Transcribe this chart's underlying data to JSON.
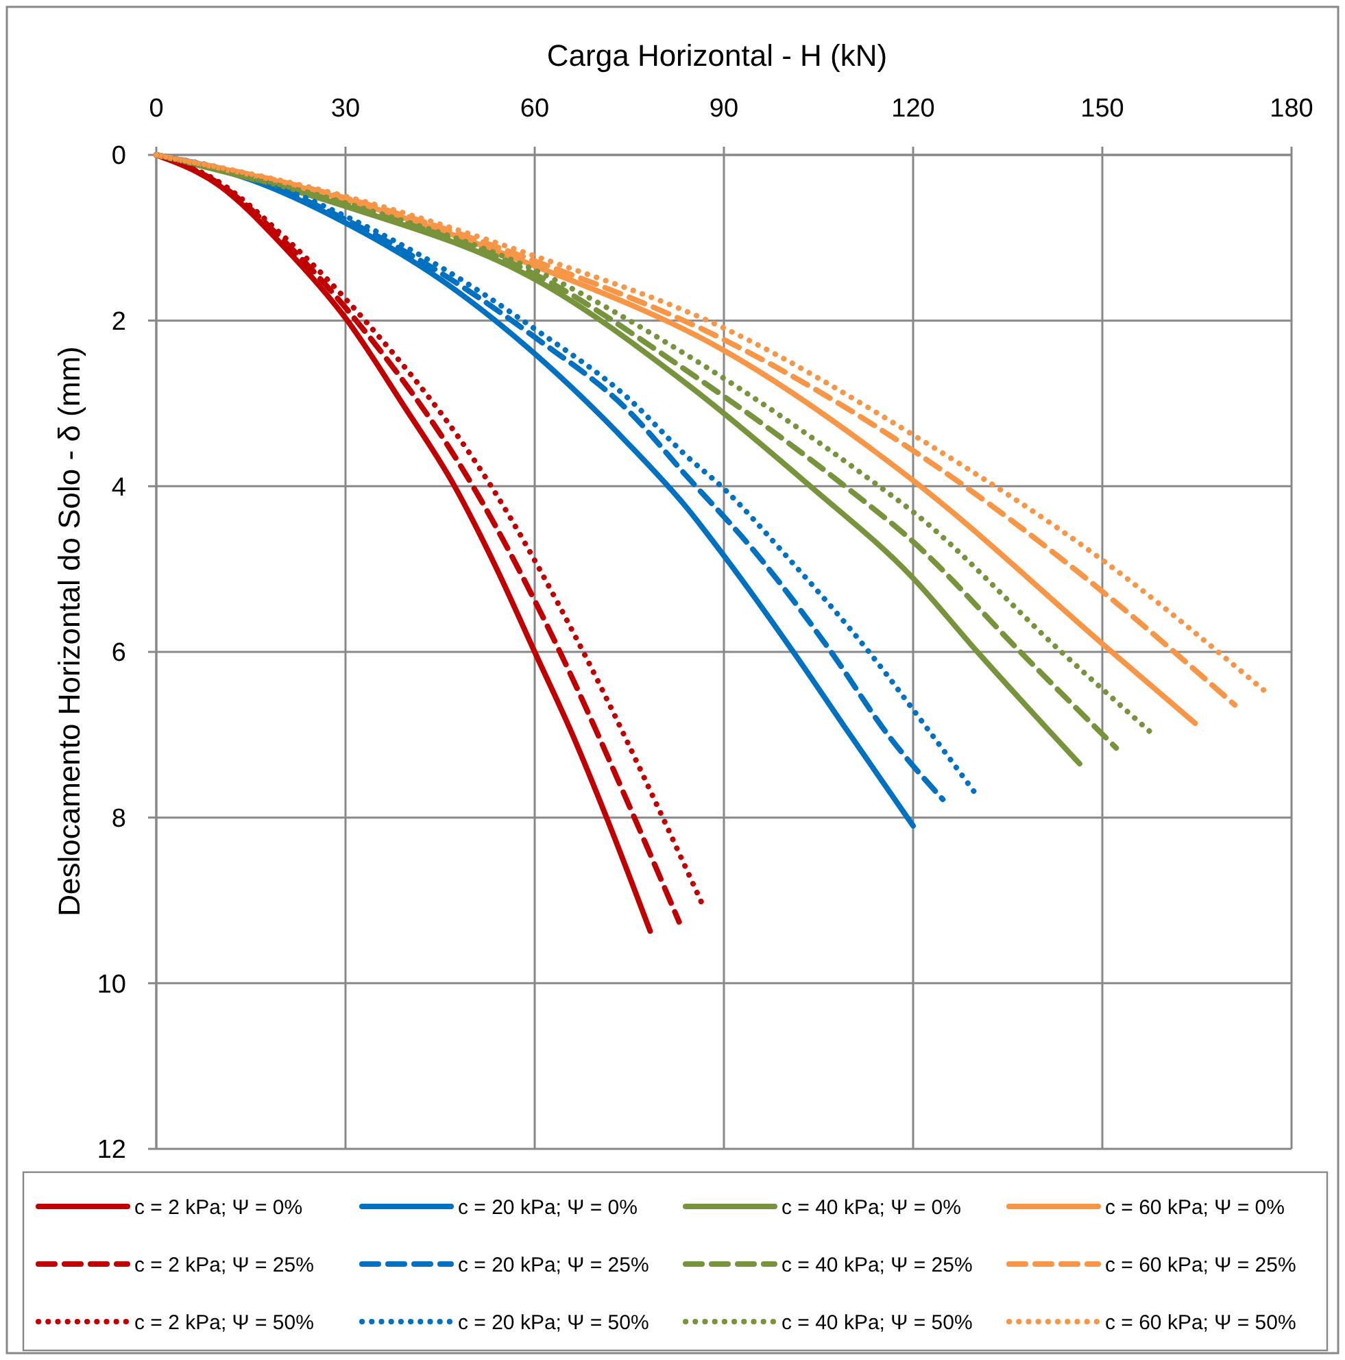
{
  "chart_data": {
    "type": "line",
    "xlabel": "Carga Horizontal - H (kN)",
    "ylabel": "Deslocamento Horizontal do Solo - δ (mm)",
    "xlim": [
      0,
      180
    ],
    "xticks": [
      0,
      30,
      60,
      90,
      120,
      150,
      180
    ],
    "ylim": [
      12,
      0
    ],
    "yticks": [
      0,
      2,
      4,
      6,
      8,
      10,
      12
    ],
    "grid": true,
    "legend": "bottom",
    "series": [
      {
        "name": "c = 2 kPa; Ψ = 0%",
        "color": "#c00000",
        "line_style": "solid",
        "x": [
          0,
          10,
          20,
          30.3,
          39,
          47.3,
          54,
          60,
          66,
          71.4,
          78.3
        ],
        "values": [
          0,
          0.37,
          1.09,
          2,
          3,
          4,
          5,
          6,
          7,
          8,
          9.37
        ]
      },
      {
        "name": "c = 20 kPa; Ψ = 0%",
        "color": "#0070c0",
        "line_style": "solid",
        "x": [
          0,
          15,
          30,
          45,
          60,
          75,
          84,
          91,
          101,
          110,
          120
        ],
        "values": [
          0,
          0.3,
          0.82,
          1.5,
          2.4,
          3.5,
          4.25,
          4.94,
          6,
          7,
          8.1
        ]
      },
      {
        "name": "c = 40 kPa; Ψ = 0%",
        "color": "#77933c",
        "line_style": "solid",
        "x": [
          0,
          30,
          60,
          84.2,
          103.7,
          120,
          130.2,
          146.4
        ],
        "values": [
          0,
          0.62,
          1.5,
          2.77,
          4,
          5.11,
          6,
          7.35
        ]
      },
      {
        "name": "c = 60 kPa; Ψ = 0%",
        "color": "#f79646",
        "line_style": "solid",
        "x": [
          0,
          30,
          60,
          90,
          120,
          151.5,
          164.7
        ],
        "values": [
          0,
          0.54,
          1.34,
          2.36,
          3.93,
          6,
          6.86
        ]
      },
      {
        "name": "c = 2 kPa; Ψ = 25%",
        "color": "#c00000",
        "line_style": "dashed",
        "x": [
          0,
          10,
          20,
          31.7,
          50.2,
          64,
          75.8,
          82.9
        ],
        "values": [
          0,
          0.35,
          1.02,
          2,
          4,
          6,
          8,
          9.26
        ]
      },
      {
        "name": "c = 20 kPa; Ψ = 25%",
        "color": "#0070c0",
        "line_style": "dashed",
        "x": [
          0,
          15,
          30,
          45,
          60,
          75,
          84,
          95,
          107,
          116,
          124.7
        ],
        "values": [
          0,
          0.28,
          0.78,
          1.42,
          2.2,
          3.1,
          3.87,
          4.8,
          6,
          7,
          7.78
        ]
      },
      {
        "name": "c = 40 kPa; Ψ = 25%",
        "color": "#77933c",
        "line_style": "dashed",
        "x": [
          0,
          30,
          60,
          84.2,
          109.2,
          120,
          137,
          152.2
        ],
        "values": [
          0,
          0.6,
          1.44,
          2.61,
          4,
          4.67,
          6,
          7.16
        ]
      },
      {
        "name": "c = 60 kPa; Ψ = 25%",
        "color": "#f79646",
        "line_style": "dashed",
        "x": [
          0,
          30,
          60,
          90,
          120,
          150,
          171
        ],
        "values": [
          0,
          0.52,
          1.28,
          2.23,
          3.57,
          5.27,
          6.64
        ]
      },
      {
        "name": "c = 2 kPa; Ψ = 50%",
        "color": "#c00000",
        "line_style": "dotted",
        "x": [
          0,
          10,
          20,
          33.1,
          53.1,
          67.7,
          80.3,
          86.6
        ],
        "values": [
          0,
          0.33,
          0.97,
          2,
          4,
          6,
          8,
          9.05
        ]
      },
      {
        "name": "c = 20 kPa; Ψ = 50%",
        "color": "#0070c0",
        "line_style": "dotted",
        "x": [
          0,
          15,
          30,
          45,
          60,
          75,
          84,
          90,
          100,
          113,
          122,
          129.8
        ],
        "values": [
          0,
          0.26,
          0.74,
          1.35,
          2.1,
          2.95,
          3.63,
          4.03,
          4.85,
          6,
          6.9,
          7.7
        ]
      },
      {
        "name": "c = 40 kPa; Ψ = 50%",
        "color": "#77933c",
        "line_style": "dotted",
        "x": [
          0,
          30,
          60,
          84.2,
          114.6,
          120,
          143.5,
          158.4
        ],
        "values": [
          0,
          0.58,
          1.39,
          2.42,
          4,
          4.31,
          6,
          7.02
        ]
      },
      {
        "name": "c = 60 kPa; Ψ = 50%",
        "color": "#f79646",
        "line_style": "dotted",
        "x": [
          0,
          30,
          60,
          90,
          120,
          150,
          176.5
        ],
        "values": [
          0,
          0.5,
          1.22,
          2.09,
          3.38,
          4.89,
          6.52
        ]
      }
    ]
  }
}
